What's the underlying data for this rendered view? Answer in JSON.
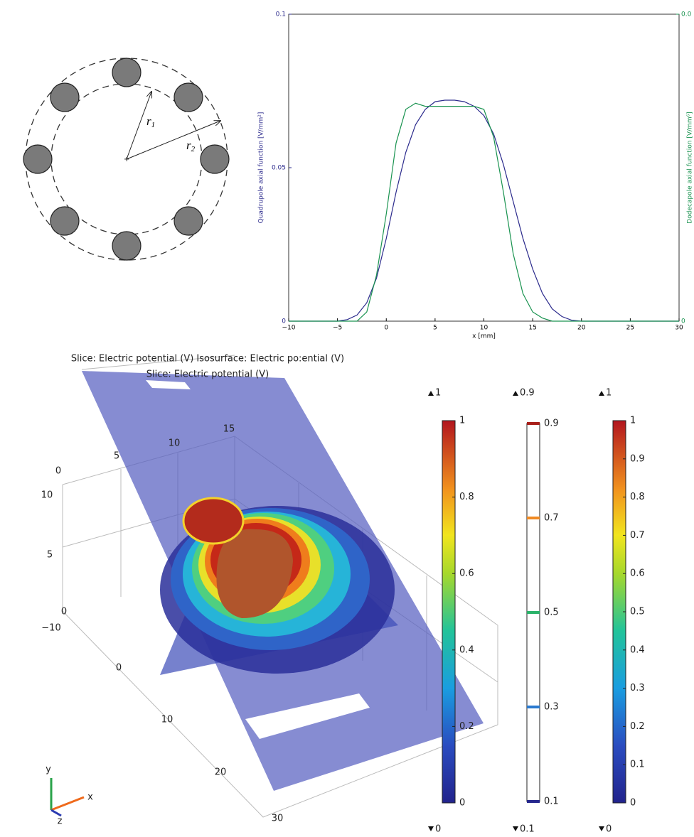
{
  "diagram": {
    "r1": {
      "label": "r",
      "sub": "1"
    },
    "r2": {
      "label": "r",
      "sub": "2"
    }
  },
  "chart_data": {
    "type": "line",
    "xlabel": "x [mm]",
    "ylabel": "Quadrupole axial function [V/mm²]",
    "y2label": "Dodecapole axial function [V/mm⁶]",
    "x": [
      -10,
      -9,
      -8,
      -7,
      -6,
      -5,
      -4,
      -3,
      -2,
      -1,
      0,
      1,
      2,
      3,
      4,
      5,
      6,
      7,
      8,
      9,
      10,
      11,
      12,
      13,
      14,
      15,
      16,
      17,
      18,
      19,
      20,
      21,
      22,
      23,
      24,
      25,
      26,
      27,
      28,
      29,
      30
    ],
    "series": [
      {
        "name": "Quadrupole",
        "color": "#2b2a8c",
        "values": [
          0,
          0,
          0,
          0,
          0,
          0,
          0.0005,
          0.002,
          0.006,
          0.014,
          0.027,
          0.042,
          0.055,
          0.064,
          0.069,
          0.0715,
          0.072,
          0.072,
          0.0715,
          0.07,
          0.067,
          0.061,
          0.051,
          0.039,
          0.027,
          0.017,
          0.009,
          0.004,
          0.0015,
          0.0003,
          0,
          0,
          0,
          0,
          0,
          0,
          0,
          0,
          0,
          0,
          0
        ]
      },
      {
        "name": "Dodecapole",
        "color": "#1a9350",
        "axis": "y2",
        "values": [
          0,
          0,
          0,
          0,
          0,
          0,
          0,
          0,
          0.0003,
          0.0015,
          0.0035,
          0.0058,
          0.0069,
          0.0071,
          0.007,
          0.007,
          0.007,
          0.007,
          0.007,
          0.007,
          0.0069,
          0.006,
          0.0042,
          0.0022,
          0.0009,
          0.0003,
          0.0001,
          0,
          0,
          0,
          0,
          0,
          0,
          0,
          0,
          0,
          0,
          0,
          0,
          0,
          0
        ]
      }
    ],
    "xlim": [
      -10,
      30
    ],
    "xticks": [
      {
        "value": -10,
        "label": "−10"
      },
      {
        "value": -5,
        "label": "−5"
      },
      0,
      5,
      10,
      15,
      20,
      25,
      30
    ],
    "ylim": [
      0,
      0.1
    ],
    "yticks": [
      0,
      0.05,
      0.1
    ],
    "y2lim": [
      0,
      0.01
    ],
    "y2ticks": [
      0,
      {
        "value": 0.01,
        "label": "0.0"
      }
    ]
  },
  "render": {
    "title": [
      "Slice: Electric potential (V) Isosurface: Electric po:ential (V)",
      "Slice: Electric potential (V)"
    ],
    "axis_numbers": [
      "15",
      "10",
      "5",
      "0",
      "10",
      "5",
      "0",
      "−10",
      "0",
      "10",
      "20",
      "30"
    ],
    "triad": [
      "y",
      "x",
      "z"
    ],
    "colorbars": [
      {
        "max": "1",
        "min": "0",
        "ticks": [
          "1",
          "0.8",
          "0.6",
          "0.4",
          "0.2",
          "0"
        ]
      },
      {
        "max": "0.9",
        "min": "0.1",
        "ticks": [
          "0.9",
          "0.7",
          "0.5",
          "0.3",
          "0.1"
        ]
      },
      {
        "max": "1",
        "min": "0",
        "ticks": [
          "1",
          "0.9",
          "0.8",
          "0.7",
          "0.6",
          "0.5",
          "0.4",
          "0.3",
          "0.2",
          "0.1",
          "0"
        ]
      }
    ]
  }
}
